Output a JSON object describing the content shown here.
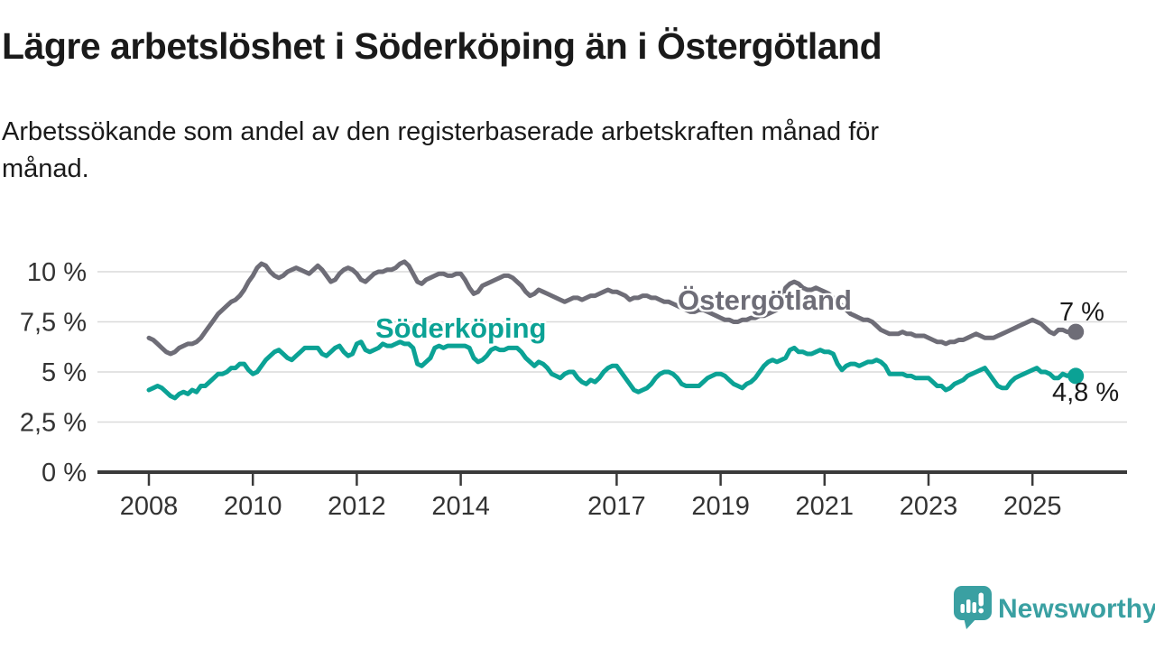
{
  "header": {
    "title": "Lägre arbetslöshet i Söderköping än i Östergötland",
    "subtitle": "Arbetssökande som andel av den registerbaserade arbetskraften månad för månad."
  },
  "chart_data": {
    "type": "line",
    "unit": "%",
    "frequency": "monthly",
    "x_start": {
      "year": 2008,
      "month": 1
    },
    "x_end": {
      "year": 2025,
      "month": 11
    },
    "ylim": [
      0,
      11
    ],
    "grid": true,
    "legend_position": "inline-labels",
    "axis_color": "#3a3a3a",
    "grid_color": "#dadada",
    "tick_label_color": "#333333",
    "y_ticks": [
      {
        "value": 0,
        "label": "0 %"
      },
      {
        "value": 2.5,
        "label": "2,5 %"
      },
      {
        "value": 5,
        "label": "5 %"
      },
      {
        "value": 7.5,
        "label": "7,5 %"
      },
      {
        "value": 10,
        "label": "10 %"
      }
    ],
    "x_ticks": [
      {
        "year": 2008,
        "label": "2008"
      },
      {
        "year": 2010,
        "label": "2010"
      },
      {
        "year": 2012,
        "label": "2012"
      },
      {
        "year": 2014,
        "label": "2014"
      },
      {
        "year": 2017,
        "label": "2017"
      },
      {
        "year": 2019,
        "label": "2019"
      },
      {
        "year": 2021,
        "label": "2021"
      },
      {
        "year": 2023,
        "label": "2023"
      },
      {
        "year": 2025,
        "label": "2025"
      }
    ],
    "series": [
      {
        "name": "Östergötland",
        "color": "#6e6d77",
        "end_label": "7 %",
        "last_value": 7.0,
        "values": [
          6.7,
          6.6,
          6.4,
          6.2,
          6.0,
          5.9,
          6.0,
          6.2,
          6.3,
          6.4,
          6.4,
          6.5,
          6.7,
          7.0,
          7.3,
          7.6,
          7.9,
          8.1,
          8.3,
          8.5,
          8.6,
          8.8,
          9.1,
          9.5,
          9.8,
          10.2,
          10.4,
          10.3,
          10.0,
          9.8,
          9.7,
          9.8,
          10.0,
          10.1,
          10.2,
          10.1,
          10.0,
          9.9,
          10.1,
          10.3,
          10.1,
          9.8,
          9.5,
          9.6,
          9.9,
          10.1,
          10.2,
          10.1,
          9.9,
          9.6,
          9.5,
          9.7,
          9.9,
          10.0,
          10.0,
          10.1,
          10.1,
          10.2,
          10.4,
          10.5,
          10.3,
          9.9,
          9.5,
          9.4,
          9.6,
          9.7,
          9.8,
          9.9,
          9.9,
          9.8,
          9.8,
          9.9,
          9.9,
          9.6,
          9.2,
          8.9,
          9.0,
          9.3,
          9.4,
          9.5,
          9.6,
          9.7,
          9.8,
          9.8,
          9.7,
          9.5,
          9.3,
          9.0,
          8.8,
          8.9,
          9.1,
          9.0,
          8.9,
          8.8,
          8.7,
          8.6,
          8.5,
          8.6,
          8.7,
          8.7,
          8.6,
          8.7,
          8.8,
          8.8,
          8.9,
          9.0,
          9.1,
          9.0,
          9.0,
          8.9,
          8.8,
          8.6,
          8.7,
          8.7,
          8.8,
          8.8,
          8.7,
          8.7,
          8.6,
          8.5,
          8.5,
          8.4,
          8.3,
          8.2,
          8.1,
          8.0,
          8.0,
          8.1,
          8.1,
          8.0,
          7.9,
          7.8,
          7.7,
          7.6,
          7.6,
          7.5,
          7.5,
          7.6,
          7.6,
          7.7,
          7.7,
          7.8,
          7.8,
          7.9,
          8.0,
          8.1,
          8.5,
          9.2,
          9.4,
          9.5,
          9.4,
          9.2,
          9.1,
          9.1,
          9.2,
          9.1,
          9.0,
          8.9,
          8.7,
          8.5,
          8.3,
          8.1,
          7.9,
          7.8,
          7.7,
          7.6,
          7.6,
          7.5,
          7.3,
          7.1,
          7.0,
          6.9,
          6.9,
          6.9,
          7.0,
          6.9,
          6.9,
          6.8,
          6.8,
          6.8,
          6.7,
          6.6,
          6.5,
          6.5,
          6.4,
          6.5,
          6.5,
          6.6,
          6.6,
          6.7,
          6.8,
          6.9,
          6.8,
          6.7,
          6.7,
          6.7,
          6.8,
          6.9,
          7.0,
          7.1,
          7.2,
          7.3,
          7.4,
          7.5,
          7.6,
          7.5,
          7.4,
          7.2,
          7.0,
          6.9,
          7.1,
          7.1,
          7.0,
          7.0,
          7.0
        ]
      },
      {
        "name": "Söderköping",
        "color": "#0ba295",
        "end_label": "4,8 %",
        "last_value": 4.8,
        "values": [
          4.1,
          4.2,
          4.3,
          4.2,
          4.0,
          3.8,
          3.7,
          3.9,
          4.0,
          3.9,
          4.1,
          4.0,
          4.3,
          4.3,
          4.5,
          4.7,
          4.9,
          4.9,
          5.0,
          5.2,
          5.2,
          5.4,
          5.4,
          5.1,
          4.9,
          5.0,
          5.3,
          5.6,
          5.8,
          6.0,
          6.1,
          5.9,
          5.7,
          5.6,
          5.8,
          6.0,
          6.2,
          6.2,
          6.2,
          6.2,
          5.9,
          5.8,
          6.0,
          6.2,
          6.3,
          6.0,
          5.8,
          5.9,
          6.4,
          6.5,
          6.1,
          6.0,
          6.1,
          6.2,
          6.4,
          6.3,
          6.3,
          6.4,
          6.5,
          6.4,
          6.4,
          6.2,
          5.4,
          5.3,
          5.5,
          5.7,
          6.2,
          6.3,
          6.2,
          6.3,
          6.3,
          6.3,
          6.3,
          6.3,
          6.2,
          5.7,
          5.5,
          5.6,
          5.8,
          6.1,
          6.2,
          6.1,
          6.1,
          6.2,
          6.2,
          6.2,
          6.0,
          5.7,
          5.5,
          5.3,
          5.5,
          5.4,
          5.2,
          4.9,
          4.8,
          4.7,
          4.9,
          5.0,
          5.0,
          4.7,
          4.5,
          4.4,
          4.6,
          4.5,
          4.7,
          5.0,
          5.2,
          5.3,
          5.3,
          5.0,
          4.7,
          4.4,
          4.1,
          4.0,
          4.1,
          4.2,
          4.4,
          4.7,
          4.9,
          5.0,
          5.0,
          4.9,
          4.7,
          4.4,
          4.3,
          4.3,
          4.3,
          4.3,
          4.5,
          4.7,
          4.8,
          4.9,
          4.9,
          4.8,
          4.6,
          4.4,
          4.3,
          4.2,
          4.4,
          4.5,
          4.7,
          5.0,
          5.3,
          5.5,
          5.6,
          5.5,
          5.6,
          5.7,
          6.1,
          6.2,
          6.0,
          6.0,
          5.9,
          5.9,
          6.0,
          6.1,
          6.0,
          6.0,
          5.9,
          5.4,
          5.1,
          5.3,
          5.4,
          5.4,
          5.3,
          5.4,
          5.5,
          5.5,
          5.6,
          5.5,
          5.3,
          4.9,
          4.9,
          4.9,
          4.9,
          4.8,
          4.8,
          4.7,
          4.7,
          4.7,
          4.7,
          4.5,
          4.3,
          4.3,
          4.1,
          4.2,
          4.4,
          4.5,
          4.6,
          4.8,
          4.9,
          5.0,
          5.1,
          5.2,
          4.9,
          4.6,
          4.3,
          4.2,
          4.2,
          4.5,
          4.7,
          4.8,
          4.9,
          5.0,
          5.1,
          5.2,
          5.0,
          5.0,
          4.9,
          4.7,
          4.7,
          4.9,
          4.8,
          4.9,
          4.8
        ]
      }
    ]
  },
  "footer": {
    "brand": "Newsworthy",
    "brand_color": "#3aa0a2",
    "logo_icon": "speech-bubble-bar-chart-icon"
  }
}
